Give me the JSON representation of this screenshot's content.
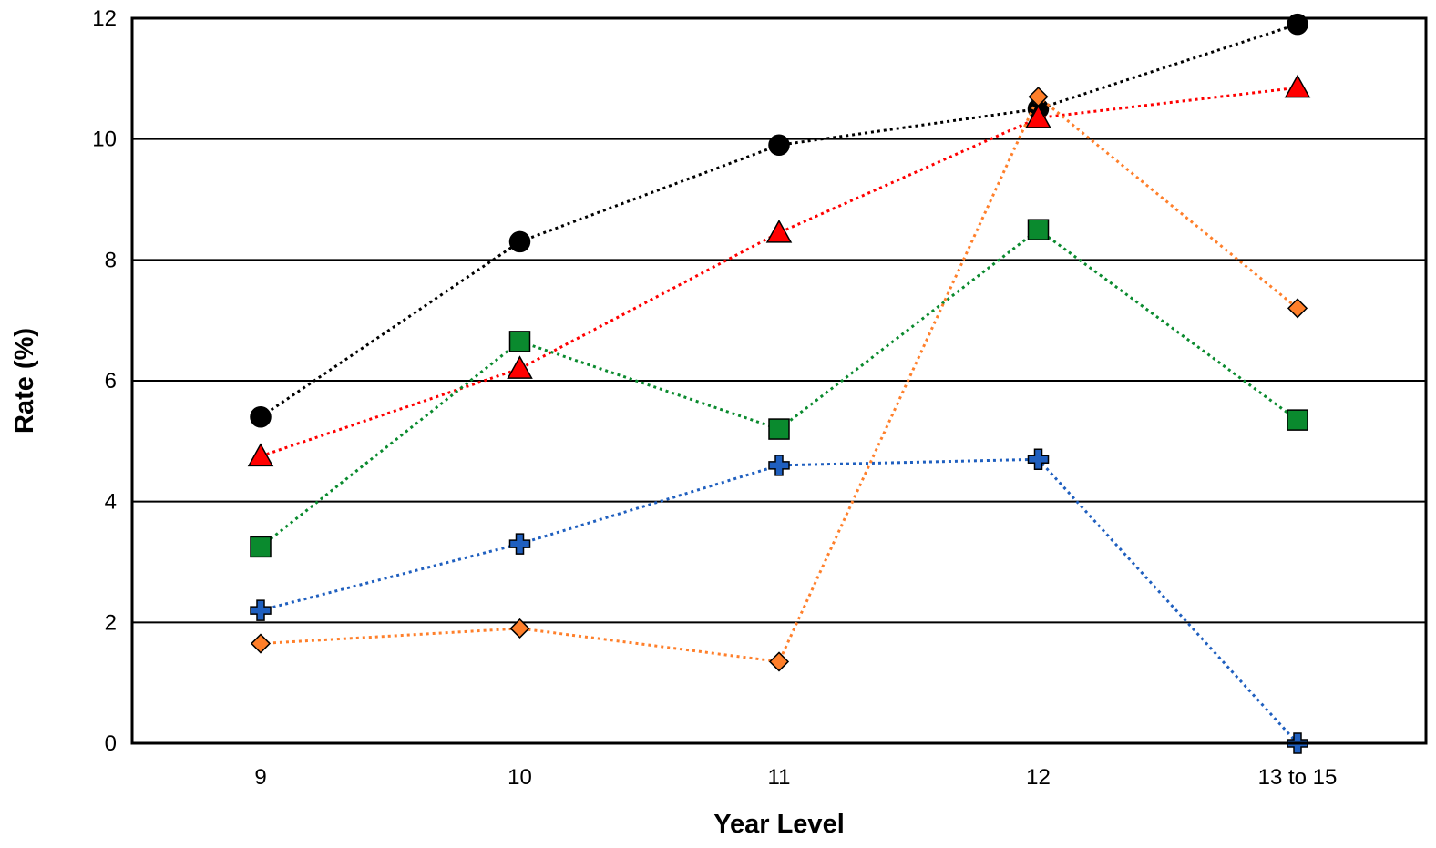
{
  "chart_data": {
    "type": "line",
    "title": "",
    "xlabel": "Year Level",
    "ylabel": "Rate (%)",
    "categories": [
      "9",
      "10",
      "11",
      "12",
      "13 to 15"
    ],
    "ylim": [
      0,
      12
    ],
    "yticks": [
      0,
      2,
      4,
      6,
      8,
      10,
      12
    ],
    "grid": "horizontal",
    "legend": "none",
    "series": [
      {
        "color": "#000000",
        "marker": "circle",
        "values": [
          5.4,
          8.3,
          9.9,
          10.5,
          11.9
        ]
      },
      {
        "color": "#ff0000",
        "marker": "triangle",
        "values": [
          4.75,
          6.2,
          8.45,
          10.35,
          10.85
        ]
      },
      {
        "color": "#0a8a2e",
        "marker": "square",
        "values": [
          3.25,
          6.65,
          5.2,
          8.5,
          5.35
        ]
      },
      {
        "color": "#1f5fbf",
        "marker": "cross",
        "values": [
          2.2,
          3.3,
          4.6,
          4.7,
          0
        ]
      },
      {
        "color": "#ff7f2a",
        "marker": "diamond",
        "values": [
          1.65,
          1.9,
          1.35,
          10.7,
          7.2
        ]
      }
    ]
  }
}
